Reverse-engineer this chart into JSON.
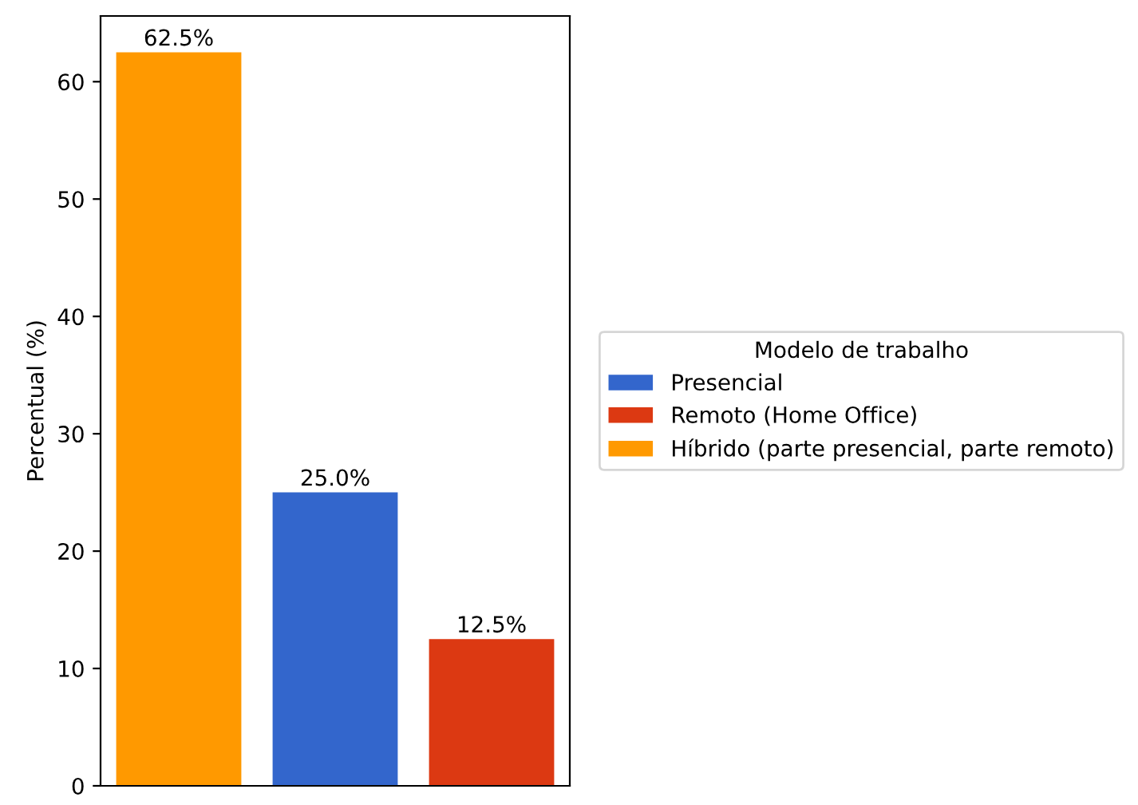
{
  "chart_data": {
    "type": "bar",
    "categories": [
      null,
      null,
      null
    ],
    "ylabel": "Percentual (%)",
    "legend_title": "Modelo de trabalho",
    "series": [
      {
        "name": "Presencial",
        "color": "#3366cc",
        "values": [
          null,
          25.0,
          null
        ],
        "value_labels": [
          null,
          "25.0%",
          null
        ]
      },
      {
        "name": "Remoto (Home Office)",
        "color": "#dc3912",
        "values": [
          null,
          null,
          12.5
        ],
        "value_labels": [
          null,
          null,
          "12.5%"
        ]
      },
      {
        "name": "Híbrido (parte presencial, parte remoto)",
        "color": "#ff9900",
        "values": [
          62.5,
          null,
          null
        ],
        "value_labels": [
          "62.5%",
          null,
          null
        ]
      }
    ],
    "ylim": [
      0,
      65.6
    ],
    "yticks": [
      0,
      10,
      20,
      30,
      40,
      50,
      60
    ],
    "grid": false,
    "legend": "right",
    "tick_labels": "y"
  }
}
